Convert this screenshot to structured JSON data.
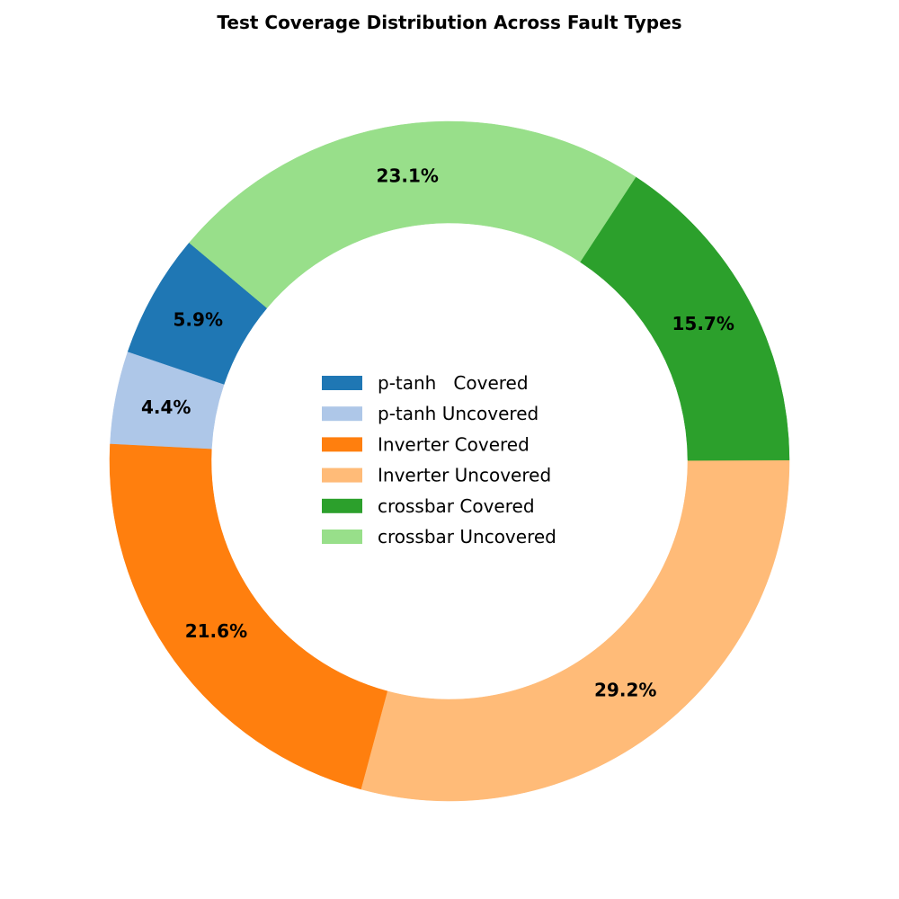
{
  "chart_data": {
    "type": "pie",
    "style": "donut",
    "title": "Test Coverage Distribution Across Fault Types",
    "slices": [
      {
        "label": "p-tanh   Covered",
        "value": 5.9,
        "display": "5.9%",
        "color": "#1f77b4"
      },
      {
        "label": "p-tanh Uncovered",
        "value": 4.4,
        "display": "4.4%",
        "color": "#aec7e8"
      },
      {
        "label": "Inverter Covered",
        "value": 21.6,
        "display": "21.6%",
        "color": "#ff7f0e"
      },
      {
        "label": "Inverter Uncovered",
        "value": 29.2,
        "display": "29.2%",
        "color": "#ffbb78"
      },
      {
        "label": "crossbar Covered",
        "value": 15.7,
        "display": "15.7%",
        "color": "#2ca02c"
      },
      {
        "label": "crossbar Uncovered",
        "value": 23.1,
        "display": "23.1%",
        "color": "#98df8a"
      }
    ],
    "start_angle_deg": 140,
    "direction": "counterclockwise",
    "legend_position": "center"
  }
}
